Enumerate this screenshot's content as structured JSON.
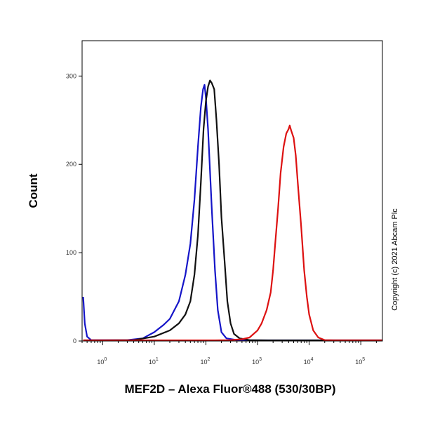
{
  "chart_data": {
    "type": "line",
    "title": "",
    "xlabel": "MEF2D – Alexa Fluor®488 (530/30BP)",
    "ylabel": "Count",
    "x_scale": "log",
    "xlim": [
      0.4,
      262144
    ],
    "ylim": [
      0,
      340
    ],
    "x_ticks": [
      {
        "value": 1,
        "base": "10",
        "exp": "0"
      },
      {
        "value": 10,
        "base": "10",
        "exp": "1"
      },
      {
        "value": 100,
        "base": "10",
        "exp": "2"
      },
      {
        "value": 1000,
        "base": "10",
        "exp": "3"
      },
      {
        "value": 10000,
        "base": "10",
        "exp": "4"
      },
      {
        "value": 100000,
        "base": "10",
        "exp": "5"
      }
    ],
    "y_ticks": [
      {
        "value": 0,
        "label": "0"
      },
      {
        "value": 100,
        "label": "100"
      },
      {
        "value": 200,
        "label": "200"
      },
      {
        "value": 300,
        "label": "300"
      }
    ],
    "grid": false,
    "legend": "none",
    "series": [
      {
        "color": "#1515c8",
        "points": [
          [
            0.42,
            50
          ],
          [
            0.45,
            20
          ],
          [
            0.5,
            5
          ],
          [
            0.6,
            1
          ],
          [
            1,
            1
          ],
          [
            3,
            1
          ],
          [
            6,
            3
          ],
          [
            10,
            10
          ],
          [
            15,
            18
          ],
          [
            20,
            25
          ],
          [
            30,
            45
          ],
          [
            40,
            75
          ],
          [
            50,
            110
          ],
          [
            60,
            160
          ],
          [
            70,
            220
          ],
          [
            80,
            265
          ],
          [
            88,
            285
          ],
          [
            94,
            290
          ],
          [
            100,
            275
          ],
          [
            110,
            240
          ],
          [
            130,
            150
          ],
          [
            150,
            80
          ],
          [
            170,
            35
          ],
          [
            200,
            10
          ],
          [
            250,
            3
          ],
          [
            400,
            1
          ],
          [
            1000,
            0
          ],
          [
            262144,
            0
          ]
        ]
      },
      {
        "color": "#111111",
        "points": [
          [
            0.42,
            0
          ],
          [
            1,
            0
          ],
          [
            4,
            1
          ],
          [
            10,
            5
          ],
          [
            20,
            12
          ],
          [
            30,
            20
          ],
          [
            40,
            30
          ],
          [
            50,
            45
          ],
          [
            60,
            75
          ],
          [
            70,
            120
          ],
          [
            80,
            180
          ],
          [
            90,
            240
          ],
          [
            100,
            272
          ],
          [
            110,
            288
          ],
          [
            120,
            295
          ],
          [
            130,
            292
          ],
          [
            145,
            285
          ],
          [
            160,
            250
          ],
          [
            180,
            200
          ],
          [
            200,
            140
          ],
          [
            230,
            90
          ],
          [
            260,
            45
          ],
          [
            300,
            20
          ],
          [
            350,
            8
          ],
          [
            450,
            3
          ],
          [
            700,
            1
          ],
          [
            2000,
            0
          ],
          [
            262144,
            0
          ]
        ]
      },
      {
        "color": "#dd1111",
        "points": [
          [
            0.42,
            0
          ],
          [
            150,
            0
          ],
          [
            300,
            1
          ],
          [
            500,
            2
          ],
          [
            700,
            4
          ],
          [
            1000,
            12
          ],
          [
            1200,
            20
          ],
          [
            1500,
            35
          ],
          [
            1800,
            55
          ],
          [
            2000,
            80
          ],
          [
            2200,
            110
          ],
          [
            2500,
            150
          ],
          [
            2800,
            190
          ],
          [
            3200,
            220
          ],
          [
            3600,
            235
          ],
          [
            4000,
            240
          ],
          [
            4200,
            244
          ],
          [
            4500,
            238
          ],
          [
            5000,
            230
          ],
          [
            5500,
            210
          ],
          [
            6000,
            180
          ],
          [
            7000,
            130
          ],
          [
            8000,
            80
          ],
          [
            9000,
            50
          ],
          [
            10000,
            30
          ],
          [
            12000,
            12
          ],
          [
            15000,
            4
          ],
          [
            20000,
            1
          ],
          [
            30000,
            0
          ],
          [
            262144,
            0
          ]
        ]
      }
    ]
  },
  "copyright": "Copyright (c) 2021 Abcam Plc"
}
